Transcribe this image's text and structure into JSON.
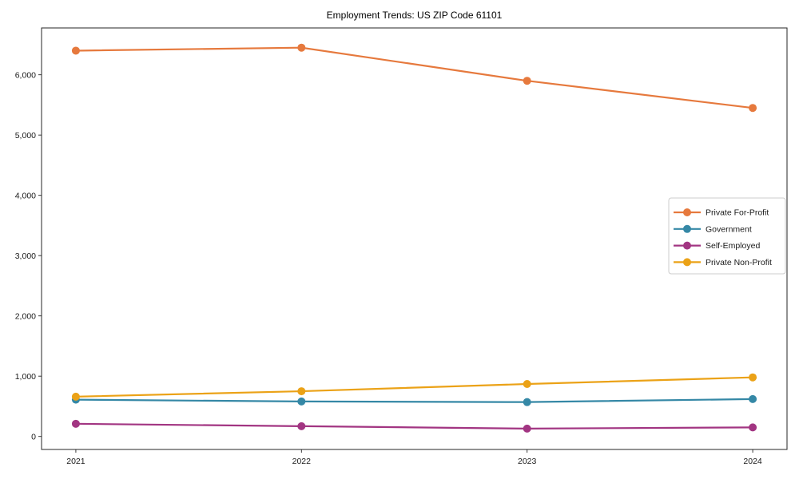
{
  "title": "Employment Trends: US ZIP Code 61101",
  "chart_data": {
    "type": "line",
    "title": "Employment Trends: US ZIP Code 61101",
    "categories": [
      "2021",
      "2022",
      "2023",
      "2024"
    ],
    "series": [
      {
        "name": "Private For-Profit",
        "color": "#e6793d",
        "values": [
          6400,
          6450,
          5900,
          5450
        ]
      },
      {
        "name": "Government",
        "color": "#3588a6",
        "values": [
          610,
          580,
          570,
          620
        ]
      },
      {
        "name": "Self-Employed",
        "color": "#a23582",
        "values": [
          210,
          170,
          130,
          150
        ]
      },
      {
        "name": "Private Non-Profit",
        "color": "#eba217",
        "values": [
          660,
          750,
          870,
          980
        ]
      }
    ],
    "xlabel": "",
    "ylabel": "",
    "yticks": [
      0,
      1000,
      2000,
      3000,
      4000,
      5000,
      6000
    ],
    "ytick_labels": [
      "0",
      "1,000",
      "2,000",
      "3,000",
      "4,000",
      "5,000",
      "6,000"
    ],
    "ylim": [
      -216,
      6777
    ],
    "grid": false,
    "legend_position": "center right",
    "axis_color": "#262626",
    "legend_border_color": "#cccccc"
  }
}
